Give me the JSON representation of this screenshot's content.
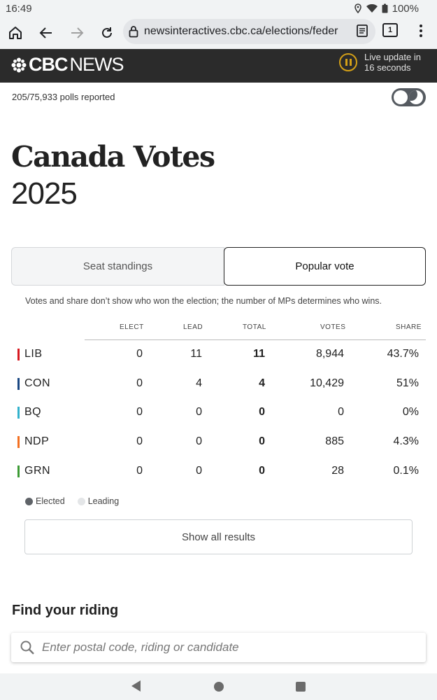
{
  "status_bar": {
    "time": "16:49",
    "battery": "100%"
  },
  "browser": {
    "url": "newsinteractives.cbc.ca/elections/feder",
    "tab_count": "1"
  },
  "header": {
    "logo_cbc": "CBC",
    "logo_news": "NEWS",
    "live_update_line1": "Live update in",
    "live_update_line2": "16 seconds"
  },
  "polls_reported": "205/75,933 polls reported",
  "title": "Canada Votes",
  "year": "2025",
  "tabs": {
    "seat_standings": "Seat standings",
    "popular_vote": "Popular vote",
    "active": "popular_vote"
  },
  "note": "Votes and share don’t show who won the election; the number of MPs determines who wins.",
  "table": {
    "headers": {
      "elect": "ELECT",
      "lead": "LEAD",
      "total": "TOTAL",
      "votes": "VOTES",
      "share": "SHARE"
    },
    "rows": [
      {
        "party": "LIB",
        "color": "#d71920",
        "elect": "0",
        "lead": "11",
        "total": "11",
        "votes": "8,944",
        "share": "43.7%"
      },
      {
        "party": "CON",
        "color": "#1a4782",
        "elect": "0",
        "lead": "4",
        "total": "4",
        "votes": "10,429",
        "share": "51%"
      },
      {
        "party": "BQ",
        "color": "#33b2cc",
        "elect": "0",
        "lead": "0",
        "total": "0",
        "votes": "0",
        "share": "0%"
      },
      {
        "party": "NDP",
        "color": "#f37021",
        "elect": "0",
        "lead": "0",
        "total": "0",
        "votes": "885",
        "share": "4.3%"
      },
      {
        "party": "GRN",
        "color": "#3d9b35",
        "elect": "0",
        "lead": "0",
        "total": "0",
        "votes": "28",
        "share": "0.1%"
      }
    ]
  },
  "legend": {
    "elected": "Elected",
    "leading": "Leading",
    "elected_color": "#5f6368",
    "leading_color": "#e4e6e8"
  },
  "show_all": "Show all results",
  "find_riding": {
    "heading": "Find your riding",
    "placeholder": "Enter postal code, riding or candidate"
  }
}
